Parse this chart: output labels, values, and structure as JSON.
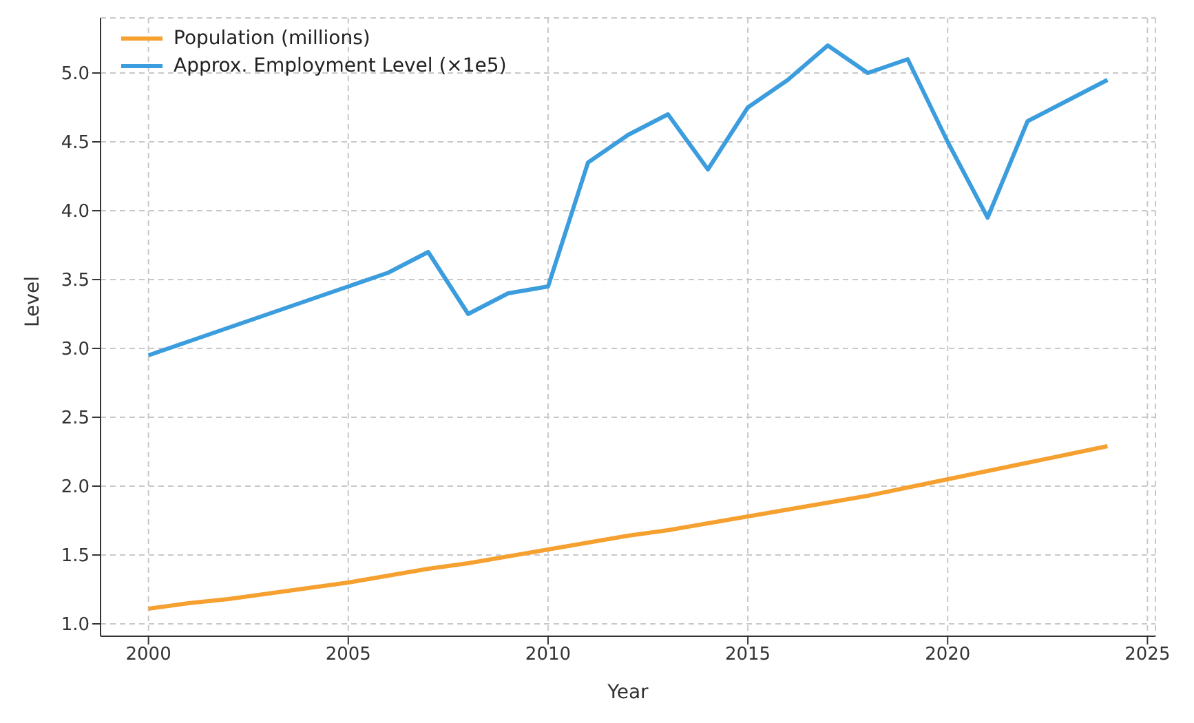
{
  "chart_data": {
    "type": "line",
    "xlabel": "Year",
    "ylabel": "Level",
    "x": [
      2000,
      2001,
      2002,
      2003,
      2004,
      2005,
      2006,
      2007,
      2008,
      2009,
      2010,
      2011,
      2012,
      2013,
      2014,
      2015,
      2016,
      2017,
      2018,
      2019,
      2020,
      2021,
      2022,
      2023,
      2024
    ],
    "series": [
      {
        "name": "Population (millions)",
        "color": "#f5a02f",
        "values": [
          1.11,
          1.15,
          1.18,
          1.22,
          1.26,
          1.3,
          1.35,
          1.4,
          1.44,
          1.49,
          1.54,
          1.59,
          1.64,
          1.68,
          1.73,
          1.78,
          1.83,
          1.88,
          1.93,
          1.99,
          2.05,
          2.11,
          2.17,
          2.23,
          2.29
        ]
      },
      {
        "name": "Approx. Employment Level (×1e5)",
        "color": "#3b9ddd",
        "values": [
          2.95,
          3.05,
          3.15,
          3.25,
          3.35,
          3.45,
          3.55,
          3.7,
          3.25,
          3.4,
          3.45,
          4.35,
          4.55,
          4.7,
          4.3,
          4.75,
          4.95,
          5.2,
          5.0,
          5.1,
          4.5,
          3.95,
          4.65,
          4.8,
          4.95
        ]
      }
    ],
    "xlim": [
      1998.8,
      2025.2
    ],
    "xticks": [
      2000,
      2005,
      2010,
      2015,
      2020,
      2025
    ],
    "ylim": [
      0.91,
      5.4
    ],
    "yticks": [
      {
        "value": 1,
        "label": "1.0"
      },
      {
        "value": 1.5,
        "label": "1.5"
      },
      {
        "value": 2,
        "label": "2.0"
      },
      {
        "value": 2.5,
        "label": "2.5"
      },
      {
        "value": 3,
        "label": "3.0"
      },
      {
        "value": 3.5,
        "label": "3.5"
      },
      {
        "value": 4,
        "label": "4.0"
      },
      {
        "value": 4.5,
        "label": "4.5"
      },
      {
        "value": 5,
        "label": "5.0"
      }
    ],
    "grid": true,
    "legend": "top left",
    "marker": "none",
    "line_style": "solid"
  }
}
